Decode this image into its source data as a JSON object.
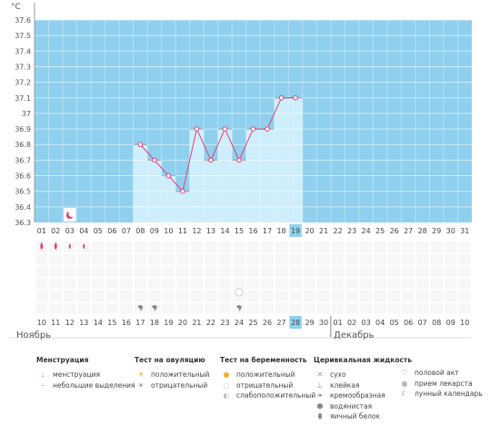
{
  "chart_data": {
    "type": "line",
    "unit": "°C",
    "y_ticks": [
      "36.3",
      "36.4",
      "36.5",
      "36.6",
      "36.7",
      "36.8",
      "36.9",
      "37",
      "37.1",
      "37.2",
      "37.3",
      "37.4",
      "37.5",
      "37.6"
    ],
    "ylim": [
      36.3,
      37.6
    ],
    "cycle_day_labels": [
      "01",
      "02",
      "03",
      "04",
      "05",
      "06",
      "07",
      "08",
      "09",
      "10",
      "11",
      "12",
      "13",
      "14",
      "15",
      "16",
      "17",
      "18",
      "19",
      "20",
      "21",
      "22",
      "23",
      "24",
      "25",
      "26",
      "27",
      "28",
      "29",
      "30",
      "31"
    ],
    "calendar_day_labels": [
      "10",
      "11",
      "12",
      "13",
      "14",
      "15",
      "16",
      "17",
      "18",
      "19",
      "20",
      "21",
      "22",
      "23",
      "24",
      "25",
      "26",
      "27",
      "28",
      "29",
      "30",
      "01",
      "02",
      "03",
      "04",
      "05",
      "06",
      "07",
      "08",
      "09",
      "10"
    ],
    "highlighted_day_index": 18,
    "red_calendar_indices": [
      2,
      3,
      9,
      10,
      16,
      17,
      23,
      24,
      30
    ],
    "month_labels": [
      "Ноябрь",
      "Декабрь"
    ],
    "series": [
      {
        "x": [
          8,
          9,
          10,
          11,
          12,
          13,
          14,
          15,
          16,
          17,
          18,
          19
        ],
        "values": [
          36.8,
          36.7,
          36.6,
          36.5,
          36.9,
          36.7,
          36.9,
          36.7,
          36.9,
          36.9,
          37.1,
          37.1
        ],
        "color": "#e0407a"
      }
    ],
    "menstruation_days": [
      1,
      2,
      3,
      4
    ],
    "icons": {
      "moon_day": 3,
      "creamy_days": [
        8,
        9,
        15
      ],
      "pregnancy_test_day": 15
    }
  },
  "legend": {
    "menstruation": {
      "title": "Менструация",
      "items": [
        "менструация",
        "небольшие выделения"
      ]
    },
    "ovulation": {
      "title": "Тест на овуляцию",
      "items": [
        "положительный",
        "отрицательный"
      ]
    },
    "pregnancy": {
      "title": "Тест на беременность",
      "items": [
        "положительный",
        "отрицательный",
        "слабоположительный"
      ]
    },
    "cervical": {
      "title": "Церивкальная жидкость",
      "items": [
        "сухо",
        "клейкая",
        "кремообразная",
        "водянистая",
        "яичный белок"
      ]
    },
    "other": {
      "items": [
        "половой акт",
        "прием лекарста",
        "лунный календарь"
      ]
    }
  },
  "colors": {
    "bg_blue": "#8fd0ee",
    "bar_fill": "#cfeefc",
    "line": "#e0407a",
    "highlight": "#8fd0ee",
    "red_day": "#e0407a"
  }
}
